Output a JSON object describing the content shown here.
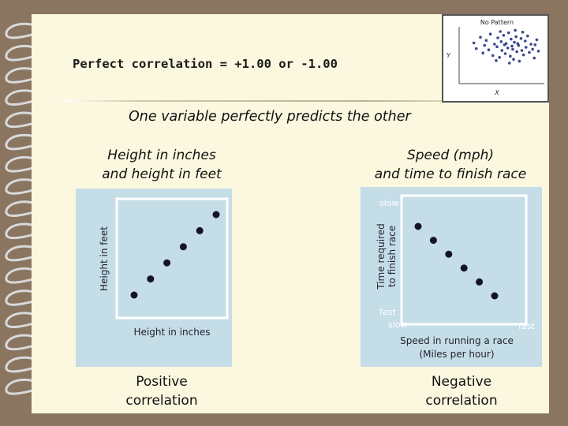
{
  "title": "Perfect correlation = +1.00 or -1.00",
  "subtitle": "One variable perfectly predicts the other",
  "left_caption": [
    "Height in inches",
    "and height in feet"
  ],
  "right_caption": [
    "Speed (mph)",
    "and time to finish race"
  ],
  "left_bottom": [
    "Positive",
    "correlation"
  ],
  "right_bottom": [
    "Negative",
    "correlation"
  ],
  "colors": {
    "panel": "#c5dde7",
    "frame": "#ffffff",
    "dot": "#141428",
    "page": "#fbf8df",
    "scatter_dot": "#3c4a8c"
  },
  "chart_data": [
    {
      "type": "scatter",
      "xlabel": "Height in inches",
      "ylabel": "Height in feet",
      "points": [
        [
          1,
          1
        ],
        [
          2,
          2
        ],
        [
          3,
          3
        ],
        [
          4,
          4
        ],
        [
          5,
          5
        ],
        [
          6,
          6
        ]
      ]
    },
    {
      "type": "scatter",
      "xlabel_lines": [
        "Speed in running a race",
        "(Miles per hour)"
      ],
      "ylabel_lines": [
        "Time required",
        "to finish race"
      ],
      "y_top_label": "slow",
      "y_bottom_label": "fast",
      "x_left_label": "slow",
      "x_right_label": "fast",
      "points": [
        [
          1,
          6
        ],
        [
          2,
          5
        ],
        [
          3,
          4
        ],
        [
          4,
          3
        ],
        [
          5,
          2
        ],
        [
          6,
          1
        ]
      ]
    },
    {
      "type": "scatter",
      "title": "No Pattern",
      "xlabel": "X",
      "ylabel": "Y",
      "points": [
        [
          1.2,
          6.2
        ],
        [
          1.5,
          5.3
        ],
        [
          2.0,
          7.1
        ],
        [
          2.3,
          4.6
        ],
        [
          2.7,
          6.6
        ],
        [
          3.0,
          5.1
        ],
        [
          3.2,
          7.6
        ],
        [
          3.5,
          4.2
        ],
        [
          3.7,
          6.0
        ],
        [
          4.0,
          5.6
        ],
        [
          4.1,
          7.0
        ],
        [
          4.3,
          3.9
        ],
        [
          4.5,
          6.4
        ],
        [
          4.6,
          5.0
        ],
        [
          4.8,
          7.4
        ],
        [
          5.0,
          4.5
        ],
        [
          5.1,
          6.1
        ],
        [
          5.3,
          5.4
        ],
        [
          5.4,
          7.8
        ],
        [
          5.6,
          4.1
        ],
        [
          5.7,
          6.8
        ],
        [
          5.9,
          5.2
        ],
        [
          6.0,
          3.6
        ],
        [
          6.1,
          6.3
        ],
        [
          6.3,
          7.2
        ],
        [
          6.4,
          4.8
        ],
        [
          6.6,
          5.8
        ],
        [
          6.7,
          3.3
        ],
        [
          6.9,
          6.9
        ],
        [
          7.0,
          5.0
        ],
        [
          7.2,
          4.3
        ],
        [
          7.4,
          6.5
        ],
        [
          7.5,
          5.5
        ],
        [
          7.7,
          7.3
        ],
        [
          7.9,
          4.7
        ],
        [
          8.1,
          6.0
        ],
        [
          8.3,
          5.2
        ],
        [
          8.5,
          3.8
        ],
        [
          8.8,
          6.7
        ],
        [
          9.0,
          4.9
        ],
        [
          3.9,
          3.4
        ],
        [
          5.5,
          3.0
        ],
        [
          6.2,
          8.2
        ],
        [
          4.4,
          8.0
        ],
        [
          7.1,
          7.9
        ],
        [
          2.5,
          5.8
        ],
        [
          8.6,
          5.9
        ],
        [
          5.8,
          5.7
        ],
        [
          4.9,
          5.9
        ],
        [
          6.5,
          6.1
        ]
      ]
    }
  ]
}
